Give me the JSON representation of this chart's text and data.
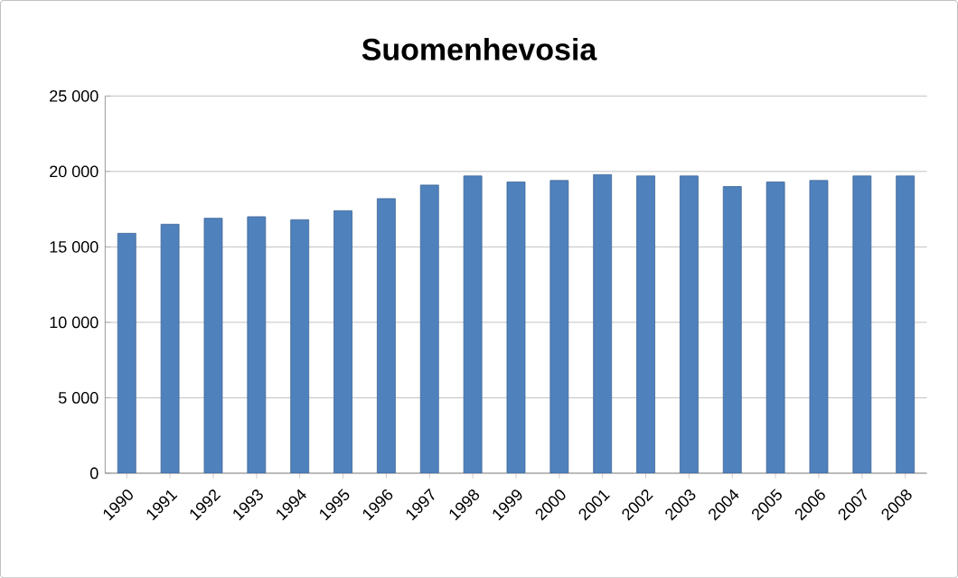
{
  "chart_data": {
    "type": "bar",
    "title": "Suomenhevosia",
    "categories": [
      "1990",
      "1991",
      "1992",
      "1993",
      "1994",
      "1995",
      "1996",
      "1997",
      "1998",
      "1999",
      "2000",
      "2001",
      "2002",
      "2003",
      "2004",
      "2005",
      "2006",
      "2007",
      "2008"
    ],
    "values": [
      15900,
      16500,
      16900,
      17000,
      16800,
      17400,
      18200,
      19100,
      19700,
      19300,
      19400,
      19800,
      19700,
      19700,
      19000,
      19300,
      19400,
      19700,
      19700
    ],
    "color": "#4f81bd",
    "ylim": [
      0,
      25000
    ],
    "yticks": [
      0,
      {
        "value": 5000,
        "label": "5 000"
      },
      {
        "value": 10000,
        "label": "10 000"
      },
      {
        "value": 15000,
        "label": "15 000"
      },
      {
        "value": 20000,
        "label": "20 000"
      },
      {
        "value": 25000,
        "label": "25 000"
      }
    ],
    "grid": "y"
  }
}
